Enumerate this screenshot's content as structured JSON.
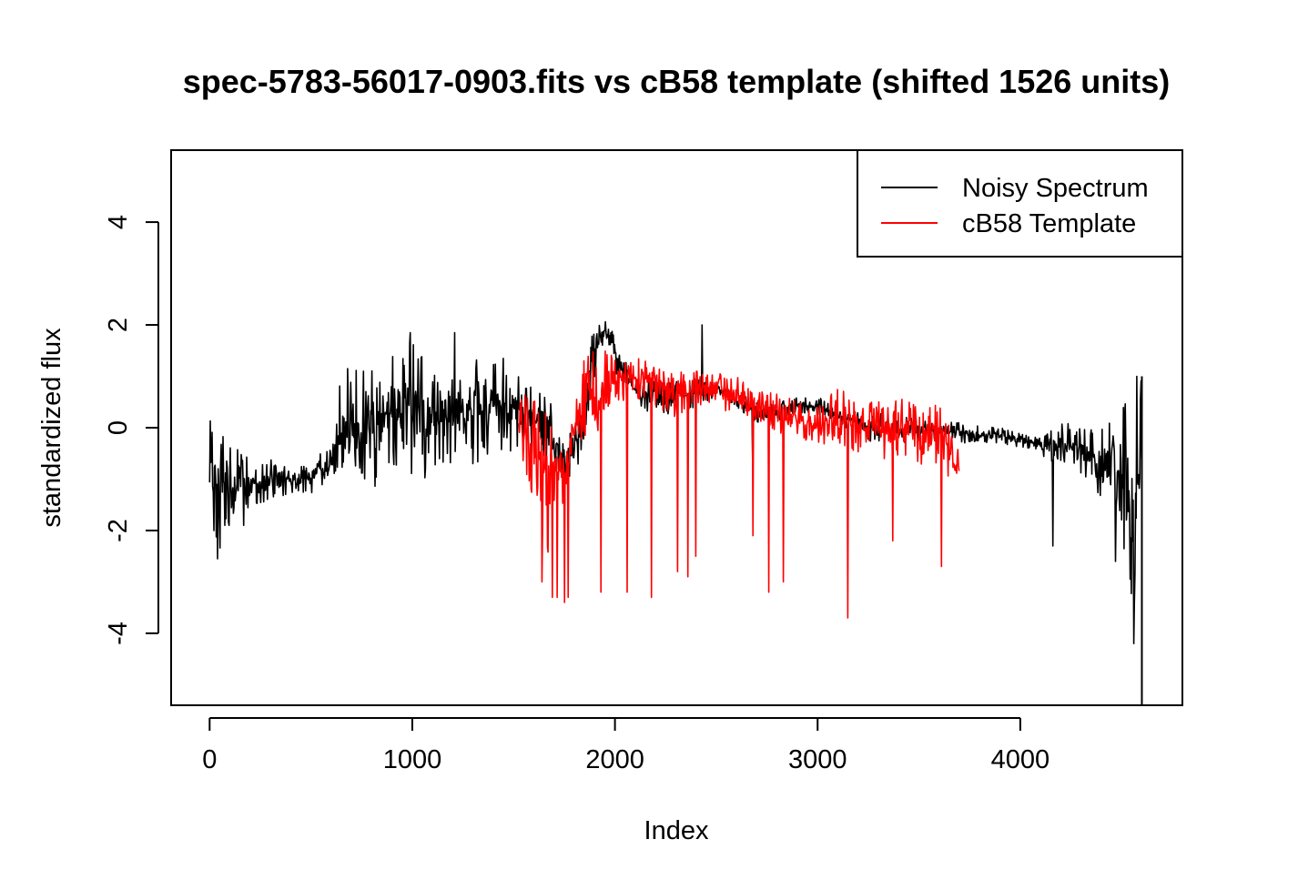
{
  "chart_data": {
    "type": "line",
    "title": "spec-5783-56017-0903.fits vs cB58 template (shifted 1526 units)",
    "xlabel": "Index",
    "ylabel": "standardized flux",
    "xlim": [
      -190,
      4800
    ],
    "ylim": [
      -5.4,
      5.4
    ],
    "x_ticks": [
      0,
      1000,
      2000,
      3000,
      4000
    ],
    "x_tick_labels": [
      "0",
      "1000",
      "2000",
      "3000",
      "4000"
    ],
    "y_ticks": [
      -4,
      -2,
      0,
      2,
      4
    ],
    "y_tick_labels": [
      "-4",
      "-2",
      "0",
      "2",
      "4"
    ],
    "grid": false,
    "legend": {
      "position": "top-right"
    },
    "series": [
      {
        "name": "Noisy Spectrum",
        "color": "#000000",
        "x_start": 0,
        "x_end": 4600,
        "envelope": [
          [
            0,
            -1.9,
            0.2
          ],
          [
            50,
            -2.4,
            0.2
          ],
          [
            100,
            -1.9,
            -0.3
          ],
          [
            200,
            -1.6,
            -0.6
          ],
          [
            300,
            -1.4,
            -0.6
          ],
          [
            400,
            -1.3,
            -0.8
          ],
          [
            500,
            -1.3,
            -0.6
          ],
          [
            600,
            -1.0,
            -0.4
          ],
          [
            650,
            -0.9,
            1.1
          ],
          [
            700,
            -0.9,
            1.2
          ],
          [
            800,
            -1.3,
            1.3
          ],
          [
            900,
            -0.9,
            1.6
          ],
          [
            1000,
            -1.1,
            1.8
          ],
          [
            1100,
            -0.9,
            1.2
          ],
          [
            1200,
            -1.0,
            1.8
          ],
          [
            1300,
            -0.8,
            1.4
          ],
          [
            1400,
            -0.5,
            1.3
          ],
          [
            1500,
            -0.6,
            1.2
          ],
          [
            1600,
            -0.5,
            0.8
          ],
          [
            1700,
            -0.8,
            0.5
          ],
          [
            1750,
            -1.1,
            -0.3
          ],
          [
            1800,
            -1.0,
            0.3
          ],
          [
            1850,
            -0.2,
            1.3
          ],
          [
            1900,
            1.0,
            2.0
          ],
          [
            1950,
            1.7,
            2.1
          ],
          [
            2000,
            1.0,
            1.8
          ],
          [
            2100,
            0.5,
            1.0
          ],
          [
            2200,
            0.2,
            1.0
          ],
          [
            2300,
            0.3,
            0.9
          ],
          [
            2400,
            0.4,
            1.0
          ],
          [
            2500,
            0.6,
            0.9
          ],
          [
            2600,
            0.4,
            0.7
          ],
          [
            2700,
            0.1,
            0.5
          ],
          [
            2800,
            0.0,
            0.5
          ],
          [
            2900,
            0.3,
            0.6
          ],
          [
            3000,
            0.2,
            0.6
          ],
          [
            3100,
            0.1,
            0.4
          ],
          [
            3200,
            -0.2,
            0.3
          ],
          [
            3300,
            -0.3,
            0.3
          ],
          [
            3500,
            -0.3,
            0.2
          ],
          [
            3700,
            -0.3,
            0.1
          ],
          [
            3900,
            -0.3,
            0.0
          ],
          [
            4000,
            -0.4,
            -0.1
          ],
          [
            4100,
            -0.5,
            -0.2
          ],
          [
            4200,
            -0.9,
            0.2
          ],
          [
            4300,
            -0.9,
            0.0
          ],
          [
            4400,
            -1.4,
            0.1
          ],
          [
            4500,
            -2.0,
            0.3
          ],
          [
            4560,
            -4.2,
            1.0
          ],
          [
            4600,
            -2.0,
            1.0
          ]
        ],
        "spikes": [
          [
            22,
            -2.0
          ],
          [
            38,
            -2.55
          ],
          [
            95,
            -1.9
          ],
          [
            168,
            -1.9
          ],
          [
            680,
            1.15
          ],
          [
            760,
            1.1
          ],
          [
            990,
            1.85
          ],
          [
            1210,
            1.85
          ],
          [
            1300,
            -0.7
          ],
          [
            1450,
            1.35
          ],
          [
            2430,
            2.0
          ],
          [
            2680,
            -0.6
          ],
          [
            4160,
            -2.3
          ],
          [
            4470,
            -2.6
          ],
          [
            4560,
            -4.2
          ],
          [
            4575,
            1.0
          ],
          [
            4605,
            -3.3
          ]
        ]
      },
      {
        "name": "cB58 Template",
        "color": "#ff0000",
        "x_start": 1526,
        "x_end": 3700,
        "envelope": [
          [
            1526,
            -0.3,
            0.5
          ],
          [
            1580,
            -1.2,
            0.8
          ],
          [
            1620,
            -2.0,
            0.6
          ],
          [
            1660,
            -2.6,
            0.6
          ],
          [
            1700,
            -2.0,
            0.2
          ],
          [
            1750,
            -1.5,
            0.3
          ],
          [
            1800,
            -0.5,
            0.3
          ],
          [
            1850,
            -0.5,
            1.9
          ],
          [
            1900,
            -0.6,
            1.7
          ],
          [
            1950,
            0.3,
            1.5
          ],
          [
            2000,
            0.5,
            1.4
          ],
          [
            2100,
            0.5,
            1.5
          ],
          [
            2200,
            0.4,
            1.3
          ],
          [
            2300,
            0.2,
            1.1
          ],
          [
            2400,
            0.4,
            1.2
          ],
          [
            2500,
            0.4,
            1.1
          ],
          [
            2600,
            0.2,
            1.0
          ],
          [
            2700,
            0.1,
            0.7
          ],
          [
            2800,
            -0.1,
            0.7
          ],
          [
            2900,
            -0.2,
            0.5
          ],
          [
            3000,
            -0.3,
            0.4
          ],
          [
            3100,
            -0.4,
            0.8
          ],
          [
            3200,
            -0.5,
            0.6
          ],
          [
            3300,
            -0.6,
            0.5
          ],
          [
            3400,
            -0.7,
            0.6
          ],
          [
            3500,
            -0.7,
            0.6
          ],
          [
            3600,
            -0.9,
            0.5
          ],
          [
            3700,
            -1.1,
            -0.4
          ]
        ],
        "spikes": [
          [
            1640,
            -3.0
          ],
          [
            1690,
            -3.3
          ],
          [
            1715,
            -3.3
          ],
          [
            1750,
            -3.4
          ],
          [
            1770,
            -3.3
          ],
          [
            1930,
            -3.2
          ],
          [
            2060,
            -3.2
          ],
          [
            2180,
            -3.3
          ],
          [
            2310,
            -2.8
          ],
          [
            2360,
            -2.9
          ],
          [
            2400,
            -2.5
          ],
          [
            2680,
            -2.1
          ],
          [
            2760,
            -3.2
          ],
          [
            2830,
            -3.0
          ],
          [
            3150,
            -3.7
          ],
          [
            3370,
            -2.2
          ],
          [
            3610,
            -2.7
          ]
        ]
      }
    ]
  }
}
